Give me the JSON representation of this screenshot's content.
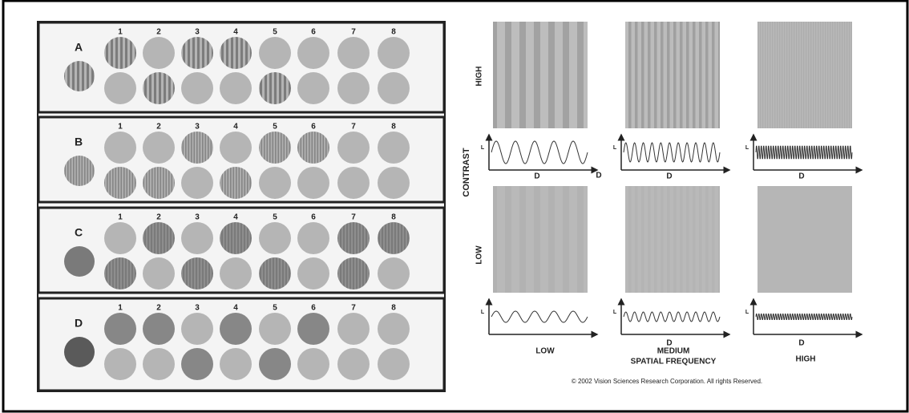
{
  "rows": [
    {
      "label": "A",
      "columns": [
        "1",
        "2",
        "3",
        "4",
        "5",
        "6",
        "7",
        "8"
      ]
    },
    {
      "label": "B",
      "columns": [
        "1",
        "2",
        "3",
        "4",
        "5",
        "6",
        "7",
        "8"
      ]
    },
    {
      "label": "C",
      "columns": [
        "1",
        "2",
        "3",
        "4",
        "5",
        "6",
        "7",
        "8"
      ]
    },
    {
      "label": "D",
      "columns": [
        "1",
        "2",
        "3",
        "4",
        "5",
        "6",
        "7",
        "8"
      ]
    }
  ],
  "gratings": {
    "y_axis": "CONTRAST",
    "row_labels": [
      "HIGH",
      "LOW"
    ],
    "graph_y_label": "L",
    "graph_x_label": "D",
    "x_labels": [
      "LOW",
      "MEDIUM",
      "HIGH"
    ],
    "x_axis": "SPATIAL FREQUENCY",
    "copyright": "© 2002 Vision Sciences Research Corporation. All rights Reserved."
  }
}
